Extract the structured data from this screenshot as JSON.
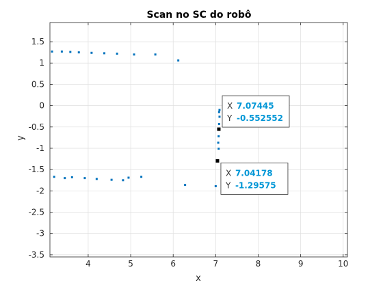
{
  "chart_data": {
    "type": "scatter",
    "title": "Scan no SC do robô",
    "xlabel": "x",
    "ylabel": "y",
    "xlim": [
      3.1,
      10.1
    ],
    "ylim": [
      -3.55,
      1.95
    ],
    "xticks": [
      4,
      5,
      6,
      7,
      8,
      9,
      10
    ],
    "yticks": [
      1.5,
      1,
      0.5,
      0,
      -0.5,
      -1,
      -1.5,
      -2,
      -2.5,
      -3,
      -3.5
    ],
    "xtick_labels": [
      "4",
      "5",
      "6",
      "7",
      "8",
      "9",
      "10"
    ],
    "ytick_labels": [
      "1.5",
      "1",
      "0.5",
      "0",
      "-0.5",
      "-1",
      "-1.5",
      "-2",
      "-2.5",
      "-3",
      "-3.5"
    ],
    "grid": true,
    "point_color": "#0072BD",
    "x": [
      3.15,
      3.38,
      3.58,
      3.78,
      4.08,
      4.38,
      4.68,
      5.08,
      5.58,
      6.12,
      7.04,
      7.07,
      7.06,
      7.07,
      7.07,
      7.08,
      7.09,
      7.09,
      7.08,
      7.04,
      7.0,
      6.28,
      5.25,
      4.95,
      4.82,
      4.55,
      4.2,
      3.92,
      3.62,
      3.45,
      3.2
    ],
    "y": [
      1.27,
      1.27,
      1.26,
      1.25,
      1.24,
      1.23,
      1.22,
      1.2,
      1.2,
      1.06,
      -1.29575,
      -1.01,
      -0.87,
      -0.72,
      -0.552552,
      -0.43,
      -0.26,
      -0.1,
      -0.15,
      -1.3,
      -1.89,
      -1.86,
      -1.67,
      -1.69,
      -1.75,
      -1.74,
      -1.72,
      -1.7,
      -1.68,
      -1.7,
      -1.67
    ],
    "datatips": [
      {
        "x_label": "X",
        "y_label": "Y",
        "x_text": "7.07445",
        "y_text": "-0.552552",
        "x": 7.07445,
        "y": -0.552552,
        "anchor": "above-right"
      },
      {
        "x_label": "X",
        "y_label": "Y",
        "x_text": "7.04178",
        "y_text": "-1.29575",
        "x": 7.04178,
        "y": -1.29575,
        "anchor": "below-right"
      }
    ],
    "datatip_color": "#0096D6"
  }
}
